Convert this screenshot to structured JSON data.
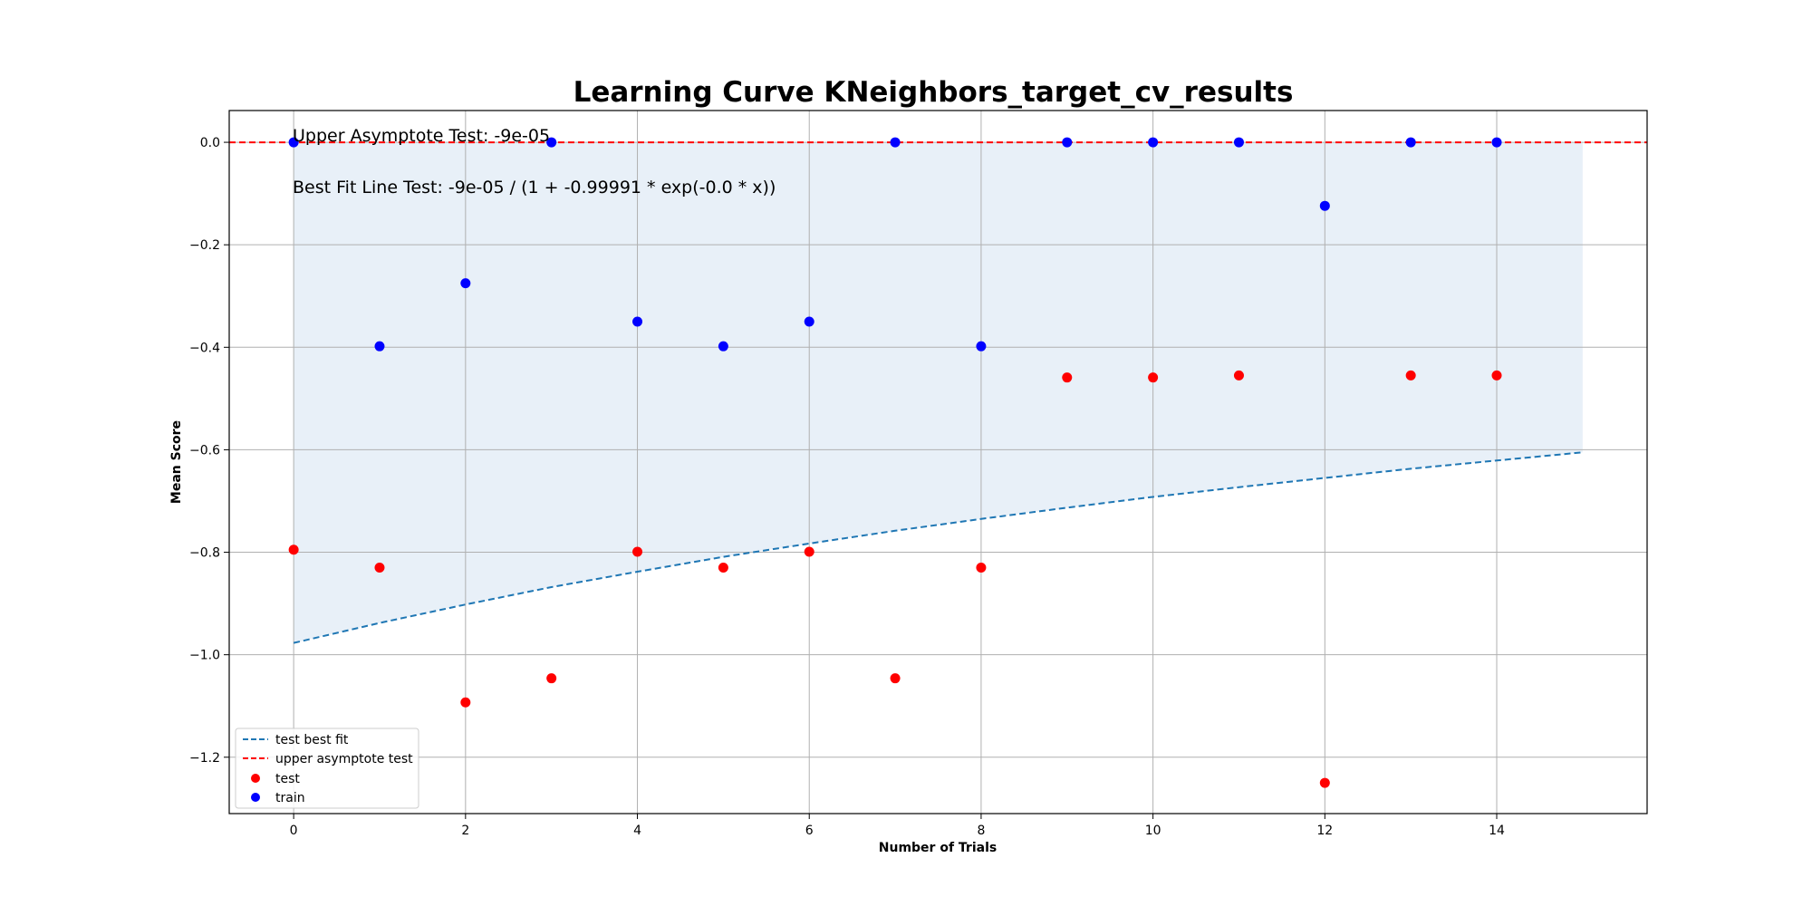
{
  "chart_data": {
    "type": "scatter",
    "title": "Learning Curve KNeighbors_target_cv_results",
    "xlabel": "Number of Trials",
    "ylabel": "Mean Score",
    "xlim": [
      -0.75,
      15.75
    ],
    "ylim": [
      -1.31,
      0.062
    ],
    "x_ticks": [
      0,
      2,
      4,
      6,
      8,
      10,
      12,
      14
    ],
    "y_ticks": [
      0.0,
      -0.2,
      -0.4,
      -0.6,
      -0.8,
      -1.0,
      -1.2
    ],
    "x_tick_labels": [
      "0",
      "2",
      "4",
      "6",
      "8",
      "10",
      "12",
      "14"
    ],
    "y_tick_labels": [
      "0.0",
      "−0.2",
      "−0.4",
      "−0.6",
      "−0.8",
      "−1.0",
      "−1.2"
    ],
    "grid": true,
    "legend_position": "lower-left",
    "annotations": [
      "Upper Asymptote Test: -9e-05",
      "Best Fit Line Test: -9e-05 / (1 + -0.99991 * exp(-0.0 * x))"
    ],
    "series": [
      {
        "name": "test best fit",
        "kind": "line",
        "style": "dashed",
        "color": "#1f77b4",
        "x": [
          0,
          1,
          2,
          3,
          4,
          5,
          6,
          7,
          8,
          9,
          10,
          11,
          12,
          13,
          14,
          15
        ],
        "y": [
          -0.977,
          -0.938,
          -0.902,
          -0.868,
          -0.838,
          -0.809,
          -0.783,
          -0.758,
          -0.735,
          -0.713,
          -0.692,
          -0.673,
          -0.655,
          -0.637,
          -0.621,
          -0.605
        ]
      },
      {
        "name": "upper asymptote test",
        "kind": "hline",
        "style": "dashed",
        "color": "#ff0000",
        "y": -9e-05
      },
      {
        "name": "test",
        "kind": "scatter",
        "color": "#ff0000",
        "x": [
          0,
          1,
          2,
          3,
          4,
          5,
          6,
          7,
          8,
          9,
          10,
          11,
          12,
          13,
          14
        ],
        "y": [
          -0.795,
          -0.83,
          -1.093,
          -1.046,
          -0.799,
          -0.83,
          -0.799,
          -1.046,
          -0.83,
          -0.459,
          -0.459,
          -0.455,
          -1.25,
          -0.455,
          -0.455
        ]
      },
      {
        "name": "train",
        "kind": "scatter",
        "color": "#0000ff",
        "x": [
          0,
          1,
          2,
          3,
          4,
          5,
          6,
          7,
          8,
          9,
          10,
          11,
          12,
          13,
          14
        ],
        "y": [
          0.0,
          -0.398,
          -0.275,
          0.0,
          -0.35,
          -0.398,
          -0.35,
          0.0,
          -0.398,
          0.0,
          0.0,
          0.0,
          -0.124,
          0.0,
          0.0
        ]
      }
    ],
    "fill_region": {
      "color": "#e8f0f8",
      "x": [
        0,
        15
      ],
      "upper": 0.0,
      "lower_from_series": "test best fit"
    }
  }
}
